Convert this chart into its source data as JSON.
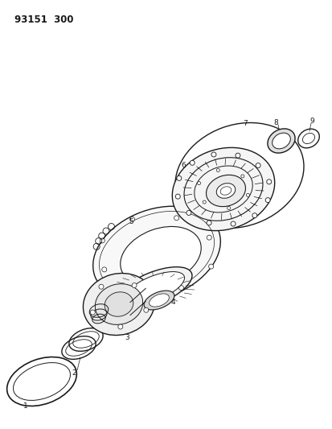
{
  "title": "93151  300",
  "background_color": "#ffffff",
  "line_color": "#1a1a1a",
  "fig_width": 4.14,
  "fig_height": 5.33,
  "dpi": 100
}
